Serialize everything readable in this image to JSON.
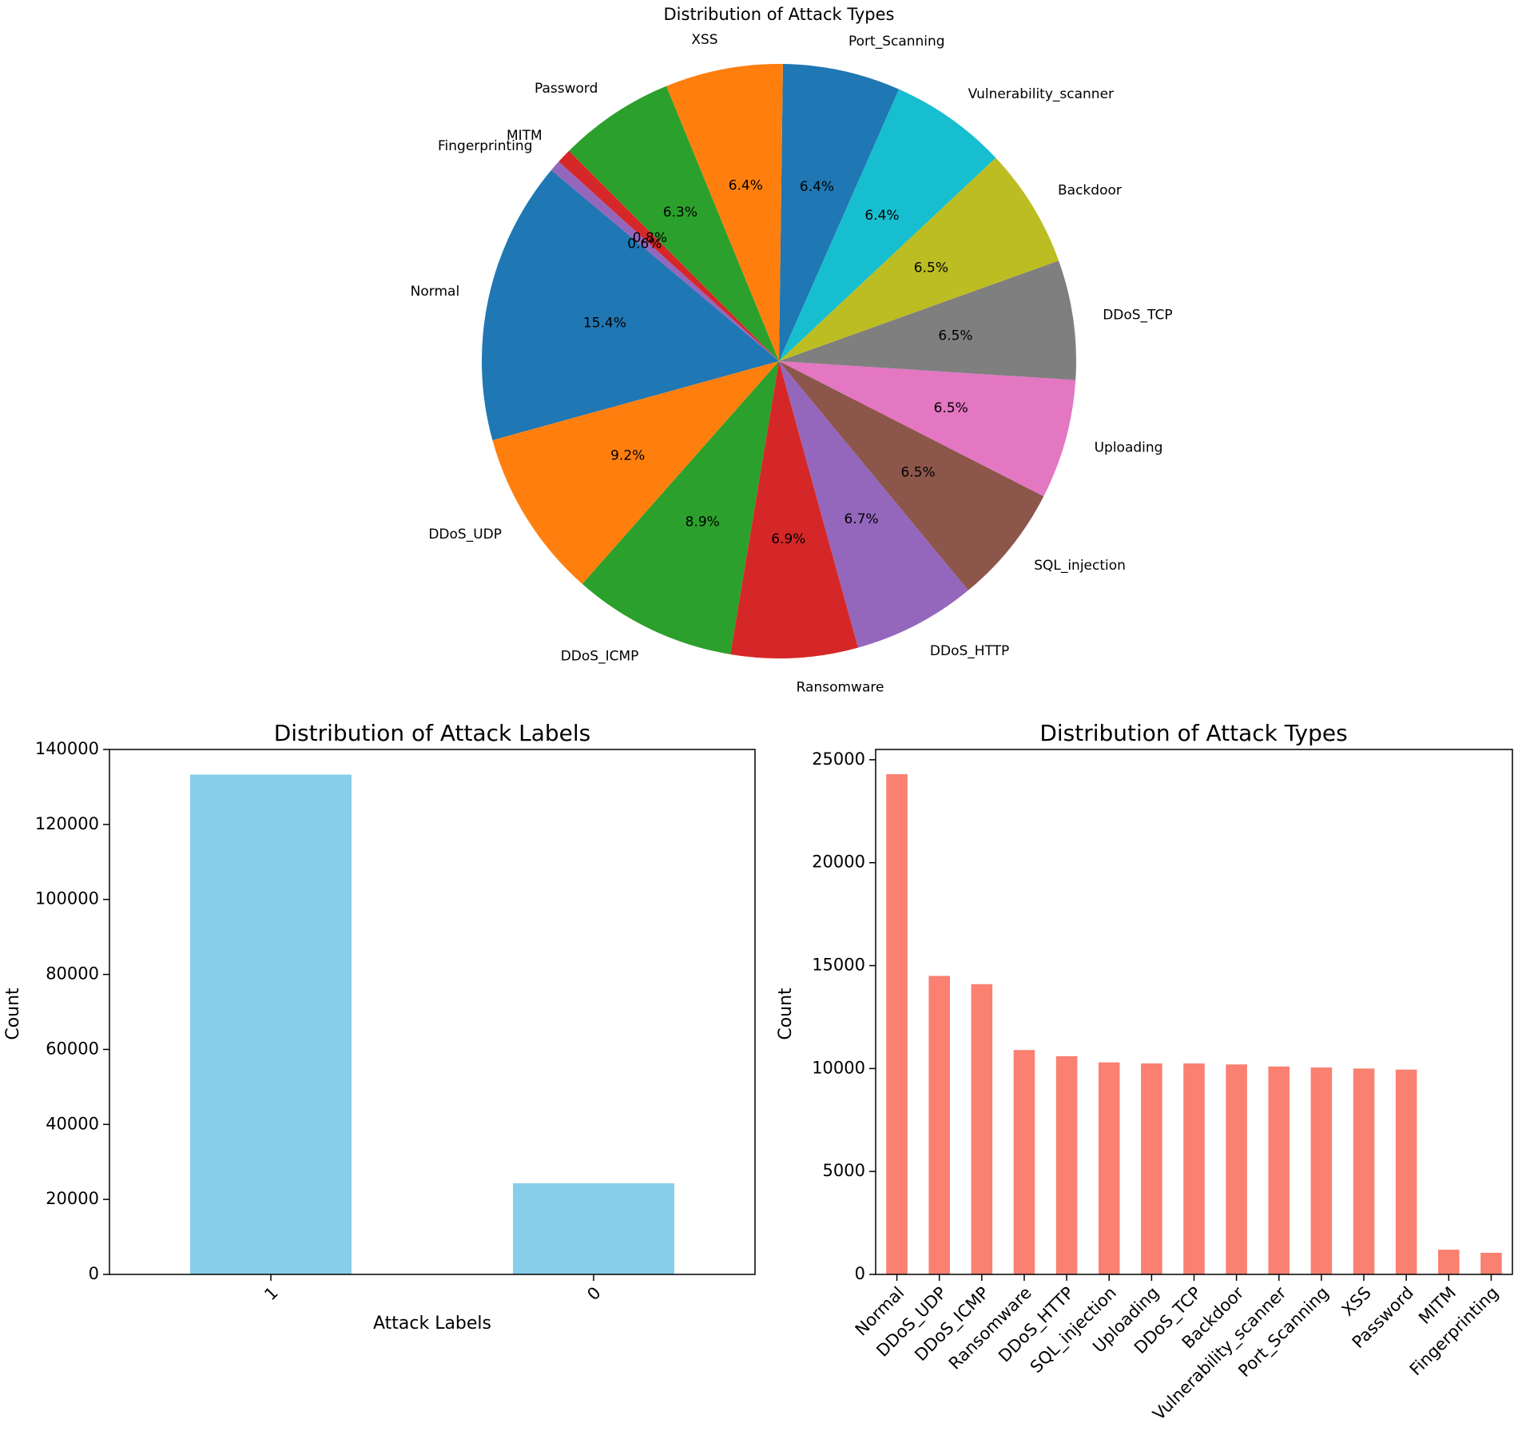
{
  "chart_data": [
    {
      "type": "pie",
      "title": "Distribution of Attack Types",
      "start_angle_deg": 140,
      "direction": "counterclockwise",
      "slices": [
        {
          "label": "Normal",
          "pct": 15.4,
          "pct_text": "15.4%",
          "color": "#1f77b4"
        },
        {
          "label": "DDoS_UDP",
          "pct": 9.2,
          "pct_text": "9.2%",
          "color": "#ff7f0e"
        },
        {
          "label": "DDoS_ICMP",
          "pct": 8.9,
          "pct_text": "8.9%",
          "color": "#2ca02c"
        },
        {
          "label": "Ransomware",
          "pct": 6.9,
          "pct_text": "6.9%",
          "color": "#d62728"
        },
        {
          "label": "DDoS_HTTP",
          "pct": 6.7,
          "pct_text": "6.7%",
          "color": "#9467bd"
        },
        {
          "label": "SQL_injection",
          "pct": 6.5,
          "pct_text": "6.5%",
          "color": "#8c564b"
        },
        {
          "label": "Uploading",
          "pct": 6.5,
          "pct_text": "6.5%",
          "color": "#e377c2"
        },
        {
          "label": "DDoS_TCP",
          "pct": 6.5,
          "pct_text": "6.5%",
          "color": "#7f7f7f"
        },
        {
          "label": "Backdoor",
          "pct": 6.5,
          "pct_text": "6.5%",
          "color": "#bcbd22"
        },
        {
          "label": "Vulnerability_scanner",
          "pct": 6.4,
          "pct_text": "6.4%",
          "color": "#17becf"
        },
        {
          "label": "Port_Scanning",
          "pct": 6.4,
          "pct_text": "6.4%",
          "color": "#1f77b4"
        },
        {
          "label": "XSS",
          "pct": 6.4,
          "pct_text": "6.4%",
          "color": "#ff7f0e"
        },
        {
          "label": "Password",
          "pct": 6.3,
          "pct_text": "6.3%",
          "color": "#2ca02c"
        },
        {
          "label": "MITM",
          "pct": 0.8,
          "pct_text": "0.8%",
          "color": "#d62728"
        },
        {
          "label": "Fingerprinting",
          "pct": 0.6,
          "pct_text": "0.6%",
          "color": "#9467bd"
        }
      ]
    },
    {
      "type": "bar",
      "title": "Distribution of Attack Labels",
      "xlabel": "Attack Labels",
      "ylabel": "Count",
      "categories": [
        "1",
        "0"
      ],
      "values": [
        133300,
        24300
      ],
      "ylim": [
        0,
        140000
      ],
      "yticks": [
        0,
        20000,
        40000,
        60000,
        80000,
        100000,
        120000,
        140000
      ],
      "color": "#87ceeb"
    },
    {
      "type": "bar",
      "title": "Distribution of Attack Types",
      "xlabel": "",
      "ylabel": "Count",
      "categories": [
        "Normal",
        "DDoS_UDP",
        "DDoS_ICMP",
        "Ransomware",
        "DDoS_HTTP",
        "SQL_injection",
        "Uploading",
        "DDoS_TCP",
        "Backdoor",
        "Vulnerability_scanner",
        "Port_Scanning",
        "XSS",
        "Password",
        "MITM",
        "Fingerprinting"
      ],
      "values": [
        24300,
        14500,
        14100,
        10900,
        10600,
        10300,
        10250,
        10250,
        10200,
        10100,
        10050,
        10000,
        9950,
        1200,
        1050
      ],
      "ylim": [
        0,
        25500
      ],
      "yticks": [
        0,
        5000,
        10000,
        15000,
        20000,
        25000
      ],
      "color": "#fa8072"
    }
  ]
}
